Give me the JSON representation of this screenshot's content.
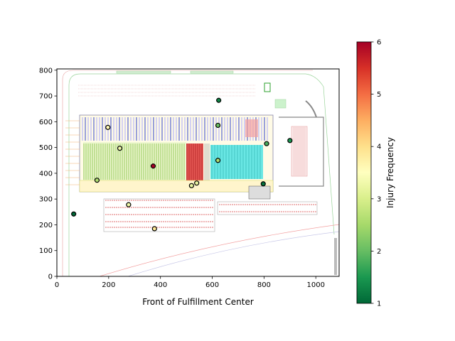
{
  "chart_data": {
    "type": "scatter",
    "title": "",
    "xlabel": "Front of Fulfillment Center",
    "ylabel": "",
    "xlim": [
      0,
      1090
    ],
    "ylim": [
      0,
      805
    ],
    "x_ticks": [
      0,
      200,
      400,
      600,
      800,
      1000
    ],
    "y_ticks": [
      0,
      100,
      200,
      300,
      400,
      500,
      600,
      700,
      800
    ],
    "grid": false,
    "background": "warehouse floor plan image",
    "colorbar": {
      "label": "Injury Frequency",
      "min": 1,
      "max": 6,
      "ticks": [
        1,
        2,
        3,
        4,
        5,
        6
      ],
      "colormap": "RdYlGn_r",
      "stops": [
        "#006837",
        "#1a9850",
        "#66bd63",
        "#a6d96a",
        "#d9ef8b",
        "#ffffbf",
        "#fee08b",
        "#fdae61",
        "#f46d43",
        "#d73027",
        "#a50026"
      ]
    },
    "points": [
      {
        "x": 625,
        "y": 683,
        "v": 1.3
      },
      {
        "x": 622,
        "y": 586,
        "v": 2.0
      },
      {
        "x": 197,
        "y": 578,
        "v": 3.6
      },
      {
        "x": 243,
        "y": 497,
        "v": 3.3
      },
      {
        "x": 372,
        "y": 428,
        "v": 6.0
      },
      {
        "x": 622,
        "y": 450,
        "v": 2.6
      },
      {
        "x": 810,
        "y": 515,
        "v": 1.8
      },
      {
        "x": 900,
        "y": 527,
        "v": 1.5
      },
      {
        "x": 155,
        "y": 373,
        "v": 2.6
      },
      {
        "x": 520,
        "y": 352,
        "v": 3.2
      },
      {
        "x": 540,
        "y": 362,
        "v": 3.2
      },
      {
        "x": 797,
        "y": 359,
        "v": 1.1
      },
      {
        "x": 277,
        "y": 278,
        "v": 3.3
      },
      {
        "x": 377,
        "y": 185,
        "v": 3.9
      },
      {
        "x": 65,
        "y": 242,
        "v": 1.0
      }
    ]
  }
}
